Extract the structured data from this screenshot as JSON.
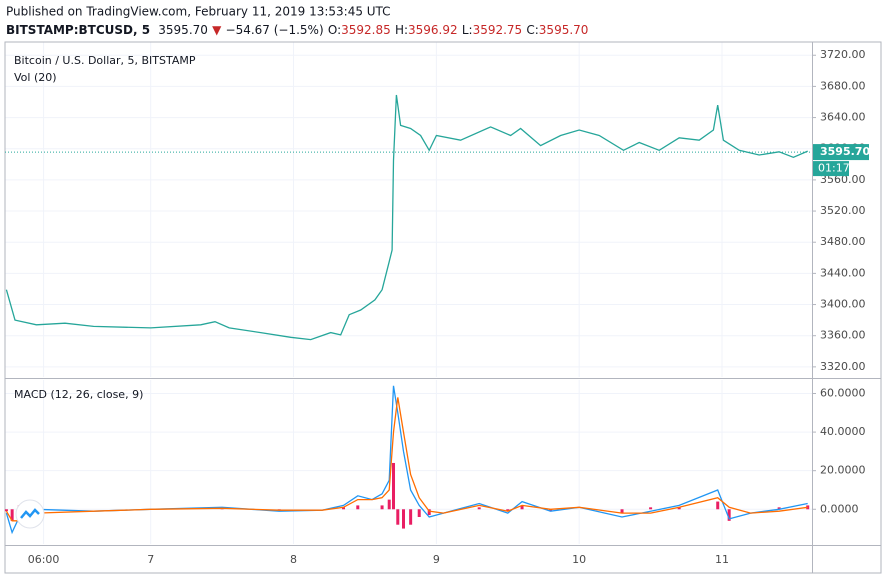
{
  "header": {
    "published": "Published on TradingView.com, February 11, 2019 13:53:45 UTC",
    "symbol": "BITSTAMP:BTCUSD, 5",
    "last": "3595.70",
    "arrow": "▼",
    "change": "−54.67 (−1.5%)",
    "ohlc": [
      {
        "label": "O:",
        "value": "3592.85"
      },
      {
        "label": "H:",
        "value": "3596.92"
      },
      {
        "label": "L:",
        "value": "3592.75"
      },
      {
        "label": "C:",
        "value": "3595.70"
      }
    ]
  },
  "chart_data": [
    {
      "type": "line",
      "title": "Bitcoin / U.S. Dollar, 5, BITSTAMP",
      "subtitle": "Vol (20)",
      "ylim": [
        3307,
        3737
      ],
      "yticks": [
        {
          "value": 3720,
          "label": "3720.00"
        },
        {
          "value": 3680,
          "label": "3680.00"
        },
        {
          "value": 3640,
          "label": "3640.00"
        },
        {
          "value": 3600,
          "label": "3600.00"
        },
        {
          "value": 3560,
          "label": "3560.00"
        },
        {
          "value": 3520,
          "label": "3520.00"
        },
        {
          "value": 3480,
          "label": "3480.00"
        },
        {
          "value": 3440,
          "label": "3440.00"
        },
        {
          "value": 3400,
          "label": "3400.00"
        },
        {
          "value": 3360,
          "label": "3360.00"
        },
        {
          "value": 3320,
          "label": "3320.00"
        }
      ],
      "last_price": {
        "value": 3595.7,
        "label": "3595.70"
      },
      "countdown": "01:17",
      "x": [
        5.99,
        6.05,
        6.2,
        6.4,
        6.6,
        7.0,
        7.35,
        7.45,
        7.55,
        7.77,
        7.98,
        8.12,
        8.26,
        8.33,
        8.39,
        8.47,
        8.57,
        8.62,
        8.67,
        8.69,
        8.7,
        8.72,
        8.75,
        8.82,
        8.89,
        8.95,
        9.0,
        9.17,
        9.38,
        9.52,
        9.59,
        9.73,
        9.87,
        10.0,
        10.14,
        10.31,
        10.42,
        10.56,
        10.7,
        10.84,
        10.94,
        10.97,
        11.01,
        11.12,
        11.26,
        11.4,
        11.5,
        11.6
      ],
      "series": [
        {
          "name": "BTCUSD",
          "color": "#26a69a",
          "values": [
            3419,
            3380,
            3374,
            3376,
            3372,
            3370,
            3374,
            3378,
            3370,
            3364,
            3358,
            3355,
            3364,
            3361,
            3387,
            3393,
            3406,
            3419,
            3455,
            3470,
            3585,
            3669,
            3630,
            3626,
            3617,
            3598,
            3617,
            3611,
            3628,
            3617,
            3626,
            3604,
            3617,
            3624,
            3617,
            3598,
            3608,
            3598,
            3614,
            3611,
            3624,
            3656,
            3611,
            3598,
            3592,
            3596,
            3589,
            3597
          ]
        }
      ]
    },
    {
      "type": "line",
      "title": "MACD (12, 26, close, 9)",
      "ylim": [
        -18,
        67
      ],
      "yticks": [
        {
          "value": 60,
          "label": "60.0000"
        },
        {
          "value": 40,
          "label": "40.0000"
        },
        {
          "value": 20,
          "label": "20.0000"
        },
        {
          "value": 0,
          "label": "0.0000"
        }
      ],
      "xlim": [
        5.98,
        11.63
      ],
      "xticks": [
        {
          "value": 6.25,
          "label": "06:00"
        },
        7,
        8,
        9,
        10,
        11
      ],
      "x": [
        5.99,
        6.03,
        6.08,
        6.2,
        6.6,
        7.0,
        7.5,
        7.9,
        8.2,
        8.35,
        8.45,
        8.55,
        8.62,
        8.67,
        8.7,
        8.73,
        8.77,
        8.82,
        8.88,
        8.95,
        9.05,
        9.3,
        9.5,
        9.6,
        9.8,
        10.0,
        10.3,
        10.5,
        10.7,
        10.97,
        11.05,
        11.2,
        11.4,
        11.6
      ],
      "series": [
        {
          "name": "Histogram",
          "type": "bar",
          "color": "#e91e63",
          "values": [
            -1,
            -6,
            2,
            2,
            0,
            0,
            0.5,
            -0.5,
            0,
            1,
            2,
            0,
            2,
            5,
            24,
            -8,
            -10,
            -8,
            -4,
            -3,
            0,
            1,
            -1,
            2,
            -1,
            0,
            -2,
            1,
            1,
            4,
            -6,
            0,
            1,
            2
          ]
        },
        {
          "name": "MACD",
          "color": "#2196f3",
          "values": [
            -2,
            -12,
            -4,
            0,
            -1,
            0,
            1,
            -1,
            -0.5,
            2,
            7,
            5,
            8,
            15,
            64,
            50,
            30,
            10,
            2,
            -4,
            -2,
            3,
            -2,
            4,
            -1,
            1,
            -4,
            -1,
            2,
            10,
            -5,
            -2,
            0,
            3
          ]
        },
        {
          "name": "Signal",
          "color": "#ff6d00",
          "values": [
            -1,
            -6,
            -6,
            -2,
            -1,
            0,
            0.5,
            -0.5,
            -0.5,
            1,
            5,
            5,
            6,
            10,
            40,
            58,
            40,
            18,
            6,
            -1,
            -2,
            2,
            -1,
            2,
            0,
            1,
            -2,
            -2,
            1,
            6,
            1,
            -2,
            -1,
            1
          ]
        }
      ]
    }
  ]
}
